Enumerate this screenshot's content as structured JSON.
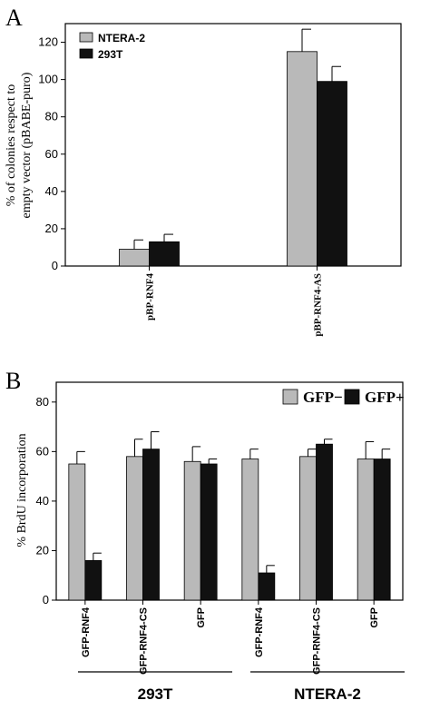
{
  "colors": {
    "gray": "#b9b9b9",
    "black": "#111111"
  },
  "chart_data": [
    {
      "panel": "A",
      "type": "bar",
      "ylabel_line1": "% of colonies respect to",
      "ylabel_line2": "empty vector (pBABE-puro)",
      "ylim": [
        0,
        130
      ],
      "yticks": [
        0,
        20,
        40,
        60,
        80,
        100,
        120
      ],
      "categories": [
        "pBP-RNF4",
        "pBP-RNF4-AS"
      ],
      "series": [
        {
          "name": "NTERA-2",
          "color": "#b9b9b9",
          "values": [
            9,
            115
          ],
          "errors": [
            5,
            12
          ]
        },
        {
          "name": "293T",
          "color": "#111111",
          "values": [
            13,
            99
          ],
          "errors": [
            4,
            8
          ]
        }
      ],
      "legend": "top-left",
      "grid": false
    },
    {
      "panel": "B",
      "type": "bar",
      "ylabel": "% BrdU incorporation",
      "ylim": [
        0,
        88
      ],
      "yticks": [
        0,
        20,
        40,
        60,
        80
      ],
      "categories": [
        "GFP-RNF4",
        "GFP-RNF4-CS",
        "GFP",
        "GFP-RNF4",
        "GFP-RNF4-CS",
        "GFP"
      ],
      "groups": [
        "293T",
        "NTERA-2"
      ],
      "series": [
        {
          "name": "GFP−",
          "color": "#b9b9b9",
          "values": [
            55,
            58,
            56,
            57,
            58,
            57
          ],
          "errors": [
            5,
            7,
            6,
            4,
            3,
            7
          ]
        },
        {
          "name": "GFP+",
          "color": "#111111",
          "values": [
            16,
            61,
            55,
            11,
            63,
            57
          ],
          "errors": [
            3,
            7,
            2,
            3,
            2,
            4
          ]
        }
      ],
      "legend": "top-right",
      "grid": false
    }
  ]
}
